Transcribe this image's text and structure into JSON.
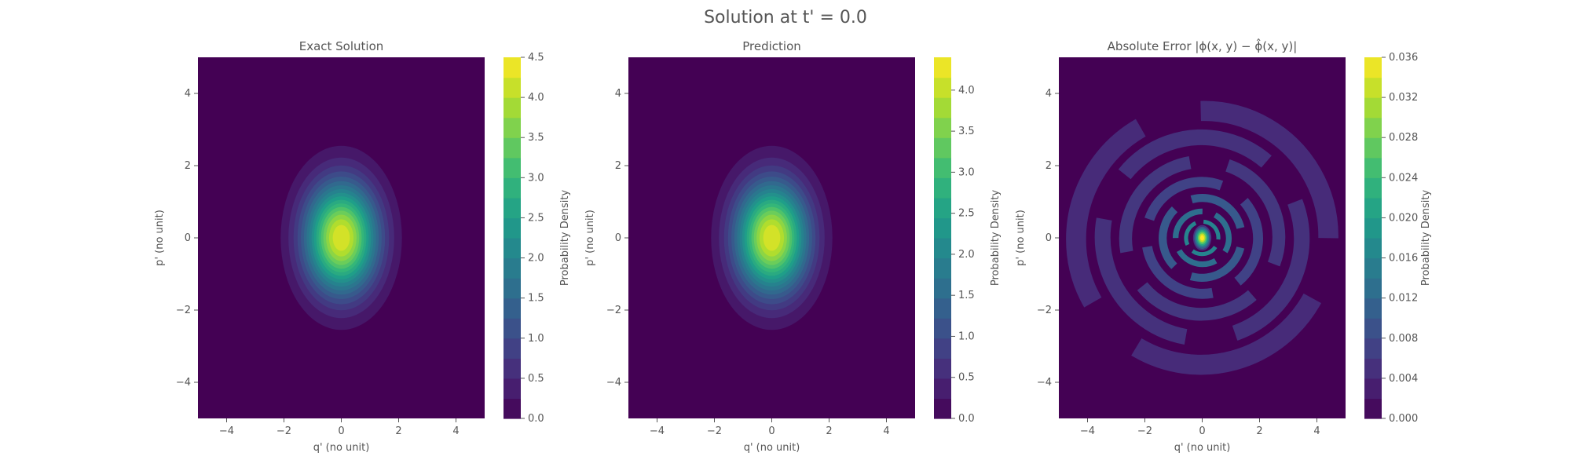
{
  "figure": {
    "title": "Solution at t' = 0.0"
  },
  "colors": {
    "text": "#555555",
    "viridis": [
      "#440154",
      "#482878",
      "#3e4989",
      "#31688e",
      "#26828e",
      "#1f9e89",
      "#35b779",
      "#6ece58",
      "#b5de2b",
      "#fde725"
    ]
  },
  "chart_data": [
    {
      "type": "heatmap",
      "title": "Exact Solution",
      "xlabel": "q' (no unit)",
      "ylabel": "p' (no unit)",
      "xlim": [
        -5,
        5
      ],
      "ylim": [
        -5,
        5
      ],
      "xticks": [
        -4,
        -2,
        0,
        2,
        4
      ],
      "yticks": [
        -4,
        -2,
        0,
        2,
        4
      ],
      "colorbar": {
        "label": "Probability Density",
        "range": [
          0.0,
          4.5
        ],
        "ticks": [
          "0.0",
          "0.5",
          "1.0",
          "1.5",
          "2.0",
          "2.5",
          "3.0",
          "3.5",
          "4.0",
          "4.5"
        ]
      },
      "peak": {
        "x": 0,
        "y": 0,
        "value": 4.5
      },
      "grid": false
    },
    {
      "type": "heatmap",
      "title": "Prediction",
      "xlabel": "q' (no unit)",
      "ylabel": "p' (no unit)",
      "xlim": [
        -5,
        5
      ],
      "ylim": [
        -5,
        5
      ],
      "xticks": [
        -4,
        -2,
        0,
        2,
        4
      ],
      "yticks": [
        -4,
        -2,
        0,
        2,
        4
      ],
      "colorbar": {
        "label": "Probability Density",
        "range": [
          0.0,
          4.4
        ],
        "ticks": [
          "0.0",
          "0.5",
          "1.0",
          "1.5",
          "2.0",
          "2.5",
          "3.0",
          "3.5",
          "4.0"
        ]
      },
      "peak": {
        "x": 0,
        "y": 0,
        "value": 4.4
      },
      "grid": false
    },
    {
      "type": "heatmap",
      "title": "Absolute Error |ϕ(x, y) − ϕ̂(x, y)|",
      "xlabel": "q' (no unit)",
      "ylabel": "p' (no unit)",
      "xlim": [
        -5,
        5
      ],
      "ylim": [
        -5,
        5
      ],
      "xticks": [
        -4,
        -2,
        0,
        2,
        4
      ],
      "yticks": [
        -4,
        -2,
        0,
        2,
        4
      ],
      "colorbar": {
        "label": "Probability Density",
        "range": [
          0.0,
          0.036
        ],
        "ticks": [
          "0.000",
          "0.004",
          "0.008",
          "0.012",
          "0.016",
          "0.020",
          "0.024",
          "0.028",
          "0.032",
          "0.036"
        ]
      },
      "peak": {
        "x": 0,
        "y": 0,
        "value": 0.036
      },
      "grid": false
    }
  ]
}
